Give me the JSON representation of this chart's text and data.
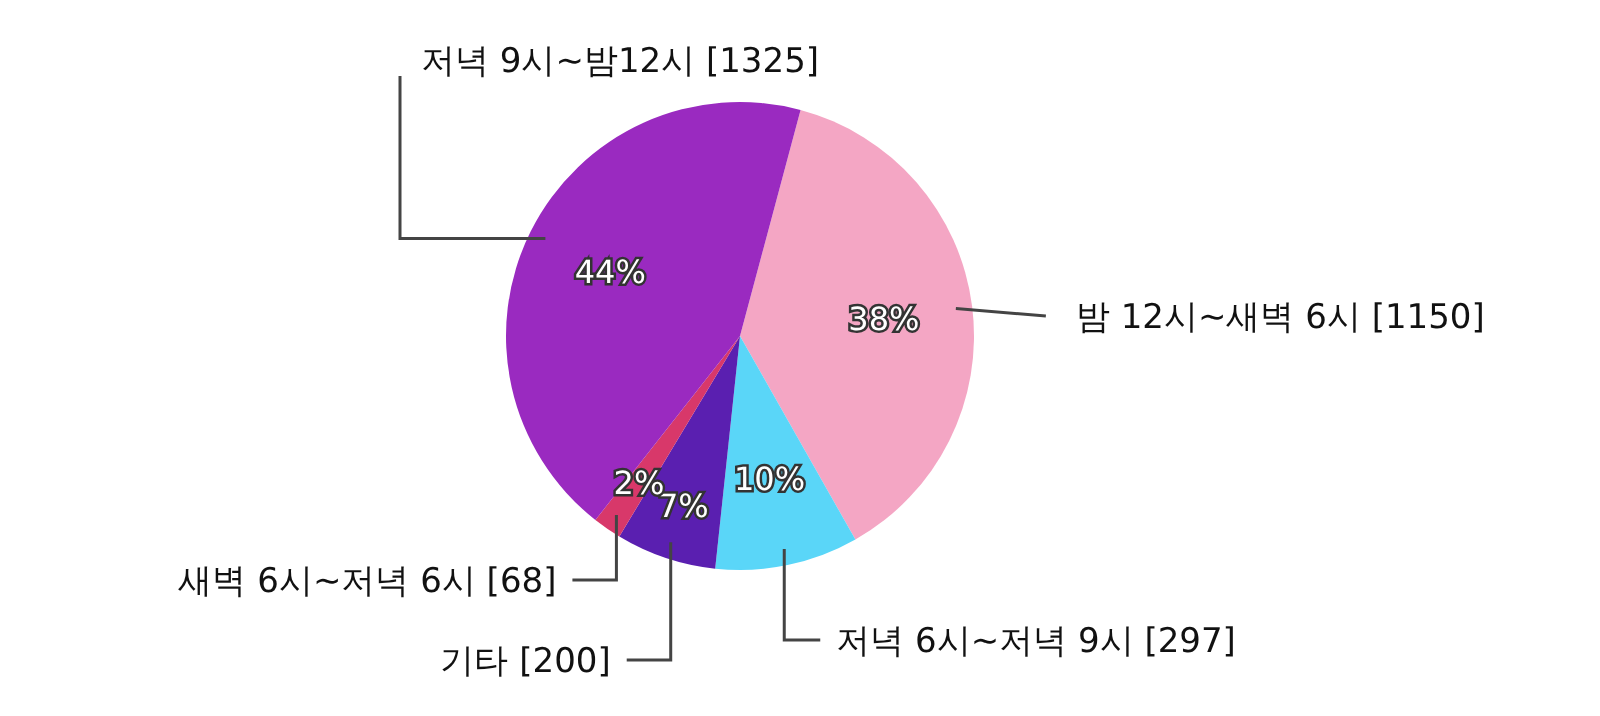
{
  "chart_data": {
    "type": "pie",
    "categories": [
      "밤 12시~새벽 6시 [1150]",
      "저녁 6시~저녁 9시 [297]",
      "기타 [200]",
      "새벽 6시~저녁 6시 [68]",
      "저녁 9시~밤12시 [1325]"
    ],
    "values": [
      38,
      10,
      7,
      2,
      44
    ],
    "value_labels": [
      "38%",
      "10%",
      "7%",
      "2%",
      "44%"
    ],
    "colors": [
      "#f4a6c4",
      "#5ad6f8",
      "#5a1fb0",
      "#d8386a",
      "#9a2ac0"
    ],
    "legend": false
  }
}
